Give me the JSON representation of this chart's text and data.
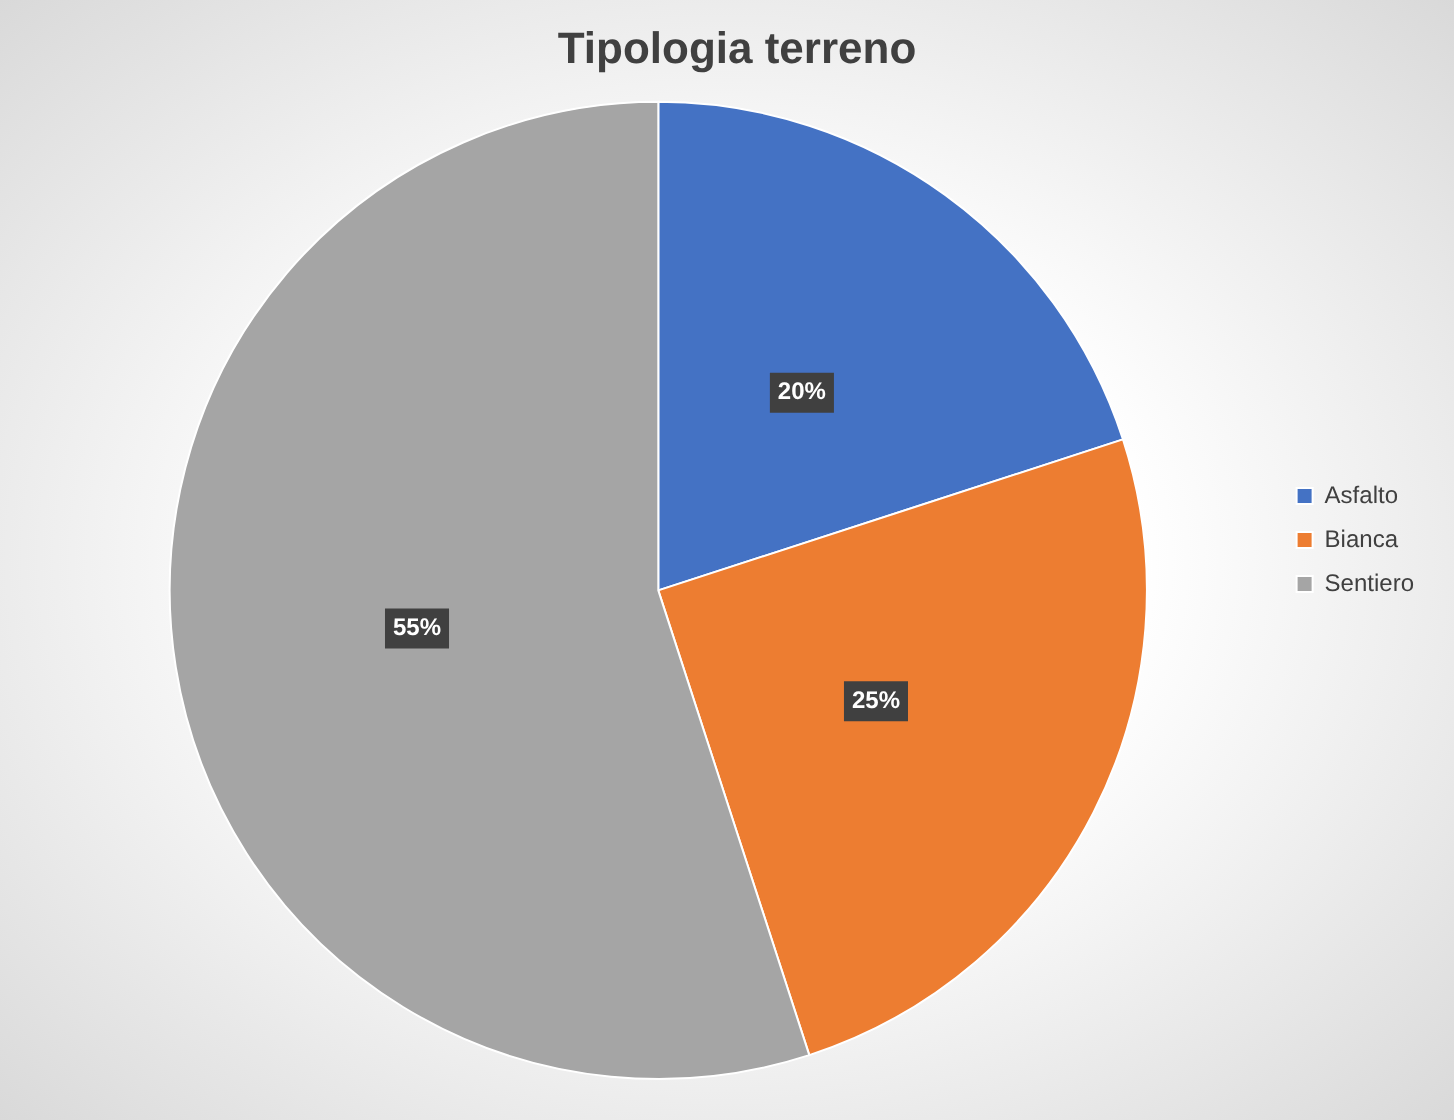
{
  "chart_data": {
    "type": "pie",
    "title": "Tipologia terreno",
    "categories": [
      "Asfalto",
      "Bianca",
      "Sentiero"
    ],
    "values": [
      20,
      25,
      55
    ],
    "value_labels": [
      "20%",
      "25%",
      "55%"
    ],
    "colors": [
      "#4472c4",
      "#ed7d31",
      "#a5a5a5"
    ],
    "legend": "right"
  }
}
